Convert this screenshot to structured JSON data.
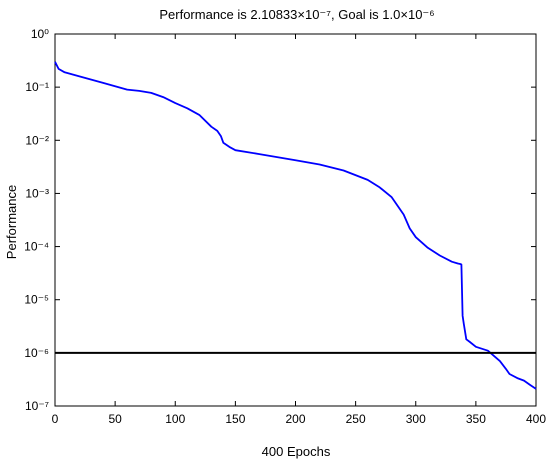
{
  "chart_data": {
    "type": "line",
    "title": "Performance is 2.10833×10⁻⁷,  Goal is 1.0×10⁻⁶",
    "xlabel": "400 Epochs",
    "ylabel": "Performance",
    "xlim": [
      0,
      400
    ],
    "ylim": [
      1e-07,
      1
    ],
    "yscale": "log",
    "grid": false,
    "xticks": [
      0,
      50,
      100,
      150,
      200,
      250,
      300,
      350,
      400
    ],
    "yticks": [
      {
        "value": 1,
        "label": "10⁰"
      },
      {
        "value": 0.1,
        "label": "10⁻¹"
      },
      {
        "value": 0.01,
        "label": "10⁻²"
      },
      {
        "value": 0.001,
        "label": "10⁻³"
      },
      {
        "value": 0.0001,
        "label": "10⁻⁴"
      },
      {
        "value": 1e-05,
        "label": "10⁻⁵"
      },
      {
        "value": 1e-06,
        "label": "10⁻⁶"
      },
      {
        "value": 1e-07,
        "label": "10⁻⁷"
      }
    ],
    "series": [
      {
        "color": "#0000ff",
        "x": [
          0,
          3,
          8,
          20,
          40,
          60,
          70,
          80,
          90,
          100,
          110,
          120,
          130,
          135,
          138,
          140,
          145,
          150,
          170,
          200,
          220,
          240,
          260,
          270,
          280,
          290,
          295,
          300,
          310,
          320,
          330,
          335,
          337,
          338,
          339,
          340,
          342,
          345,
          350,
          360,
          370,
          375,
          378,
          385,
          390,
          395,
          400
        ],
        "y": [
          0.3,
          0.22,
          0.19,
          0.16,
          0.12,
          0.09,
          0.085,
          0.078,
          0.065,
          0.05,
          0.04,
          0.03,
          0.018,
          0.015,
          0.012,
          0.009,
          0.0075,
          0.0065,
          0.0055,
          0.0042,
          0.0035,
          0.0027,
          0.0018,
          0.0013,
          0.00085,
          0.0004,
          0.00022,
          0.00015,
          9.5e-05,
          6.8e-05,
          5.2e-05,
          4.8e-05,
          4.7e-05,
          4.6e-05,
          5e-06,
          3.5e-06,
          1.8e-06,
          1.6e-06,
          1.3e-06,
          1.1e-06,
          7e-07,
          5e-07,
          4e-07,
          3.3e-07,
          3e-07,
          2.5e-07,
          2.1e-07
        ]
      },
      {
        "color": "#000000",
        "x": [
          0,
          400
        ],
        "y": [
          1e-06,
          1e-06
        ]
      }
    ]
  }
}
